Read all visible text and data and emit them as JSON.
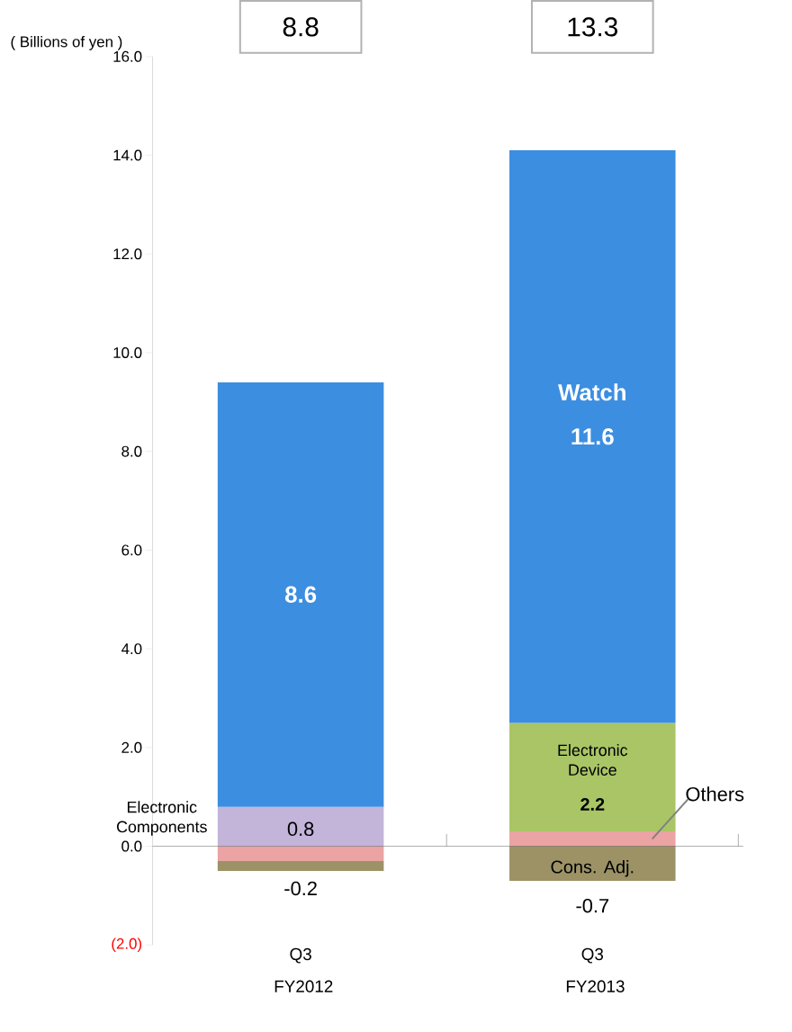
{
  "chart_data": {
    "type": "bar",
    "stacked": true,
    "ylabel": "( Billions of yen )",
    "categories": [
      "Q3 FY2012",
      "Q3 FY2013"
    ],
    "series": [
      {
        "color": "#eba3a3",
        "values": [
          -0.3,
          0.3
        ],
        "value_labels": [
          null,
          null
        ]
      },
      {
        "colors": [
          "#c3b4da",
          "#a9c566"
        ],
        "values": [
          0.8,
          2.2
        ],
        "value_labels": [
          "0.8",
          "2.2"
        ]
      },
      {
        "color": "#3c8ee0",
        "values": [
          8.6,
          11.6
        ],
        "value_labels": [
          "8.6",
          "11.6"
        ]
      },
      {
        "color": "#9c9266",
        "values": [
          -0.2,
          -0.7
        ],
        "value_labels": [
          "-0.2",
          "-0.7"
        ]
      }
    ],
    "annotations": [
      "Electronic Components",
      "Electronic Device",
      "Watch",
      "Others",
      "Cons. Adj.",
      "8.8",
      "13.3"
    ],
    "ylim": [
      -2,
      16
    ],
    "yticks": [
      {
        "value": -2,
        "label": "(2.0)"
      },
      {
        "value": 0,
        "label": "0.0"
      },
      {
        "value": 2,
        "label": "2.0"
      },
      {
        "value": 4,
        "label": "4.0"
      },
      {
        "value": 6,
        "label": "6.0"
      },
      {
        "value": 8,
        "label": "8.0"
      },
      {
        "value": 10,
        "label": "10.0"
      },
      {
        "value": 12,
        "label": "12.0"
      },
      {
        "value": 14,
        "label": "14.0"
      },
      {
        "value": 16,
        "label": "16.0"
      }
    ]
  }
}
